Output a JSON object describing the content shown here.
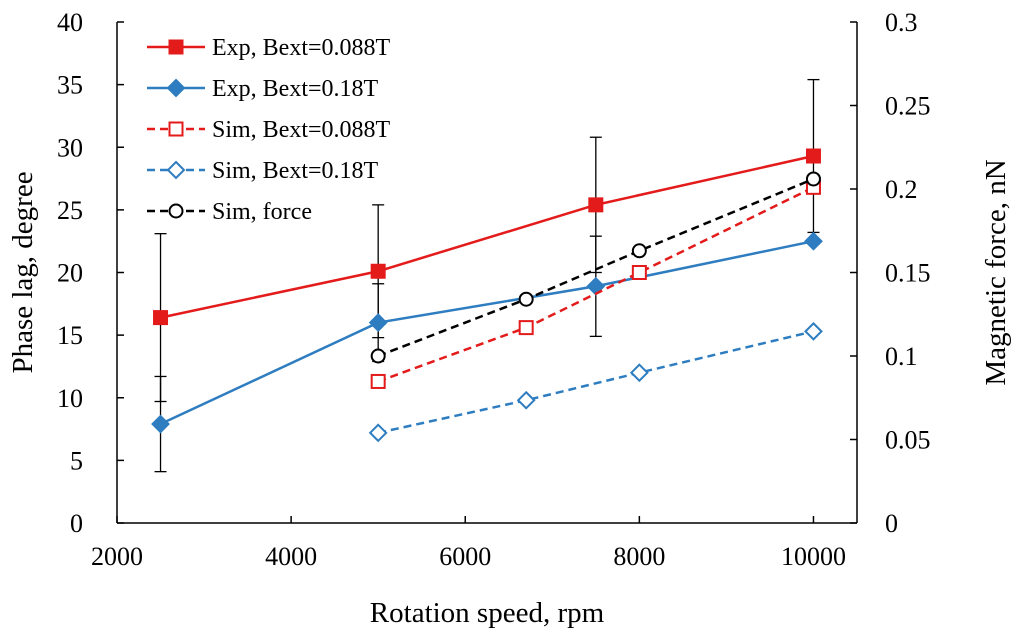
{
  "chart_data": {
    "type": "line",
    "title": "",
    "xlabel": "Rotation speed, rpm",
    "ylabel": "Phase lag, degree",
    "y2label": "Magnetic force, nN",
    "xlim": [
      2000,
      10500
    ],
    "ylim": [
      0,
      40
    ],
    "y2lim": [
      0,
      0.3
    ],
    "x_ticks": [
      "2000",
      "4000",
      "6000",
      "8000",
      "10000"
    ],
    "y_ticks": [
      "0",
      "5",
      "10",
      "15",
      "20",
      "25",
      "30",
      "35",
      "40"
    ],
    "y2_ticks": [
      "0",
      "0.05",
      "0.1",
      "0.15",
      "0.2",
      "0.25",
      "0.3"
    ],
    "grid": false,
    "legend_position": "top-left",
    "series": [
      {
        "name": "Exp, Bext=0.088T",
        "axis": "left",
        "color": "#e31b1b",
        "dash": "solid",
        "marker": "square-filled",
        "x": [
          2500,
          5000,
          7500,
          10000
        ],
        "y": [
          16.4,
          20.1,
          25.4,
          29.3
        ],
        "error": [
          6.7,
          5.3,
          5.4,
          6.1
        ]
      },
      {
        "name": "Exp, Bext=0.18T",
        "axis": "left",
        "color": "#2e7dc0",
        "dash": "solid",
        "marker": "diamond-filled",
        "x": [
          2500,
          5000,
          7500,
          10000
        ],
        "y": [
          7.9,
          16.0,
          18.9,
          22.5
        ],
        "error": [
          3.8,
          3.1,
          4.0,
          0
        ]
      },
      {
        "name": "Sim, Bext=0.088T",
        "axis": "left",
        "color": "#e31b1b",
        "dash": "dashed",
        "marker": "square-open",
        "x": [
          5000,
          6700,
          8000,
          10000
        ],
        "y": [
          11.3,
          15.6,
          20.0,
          26.8
        ]
      },
      {
        "name": "Sim, Bext=0.18T",
        "axis": "left",
        "color": "#2e7dc0",
        "dash": "dashed",
        "marker": "diamond-open",
        "x": [
          5000,
          6700,
          8000,
          10000
        ],
        "y": [
          7.2,
          9.8,
          12.0,
          15.3
        ]
      },
      {
        "name": "Sim, force",
        "axis": "right",
        "color": "#000000",
        "dash": "dashed",
        "marker": "circle-open",
        "x": [
          5000,
          6700,
          8000,
          10000
        ],
        "y": [
          0.1,
          0.134,
          0.163,
          0.206
        ]
      }
    ]
  }
}
